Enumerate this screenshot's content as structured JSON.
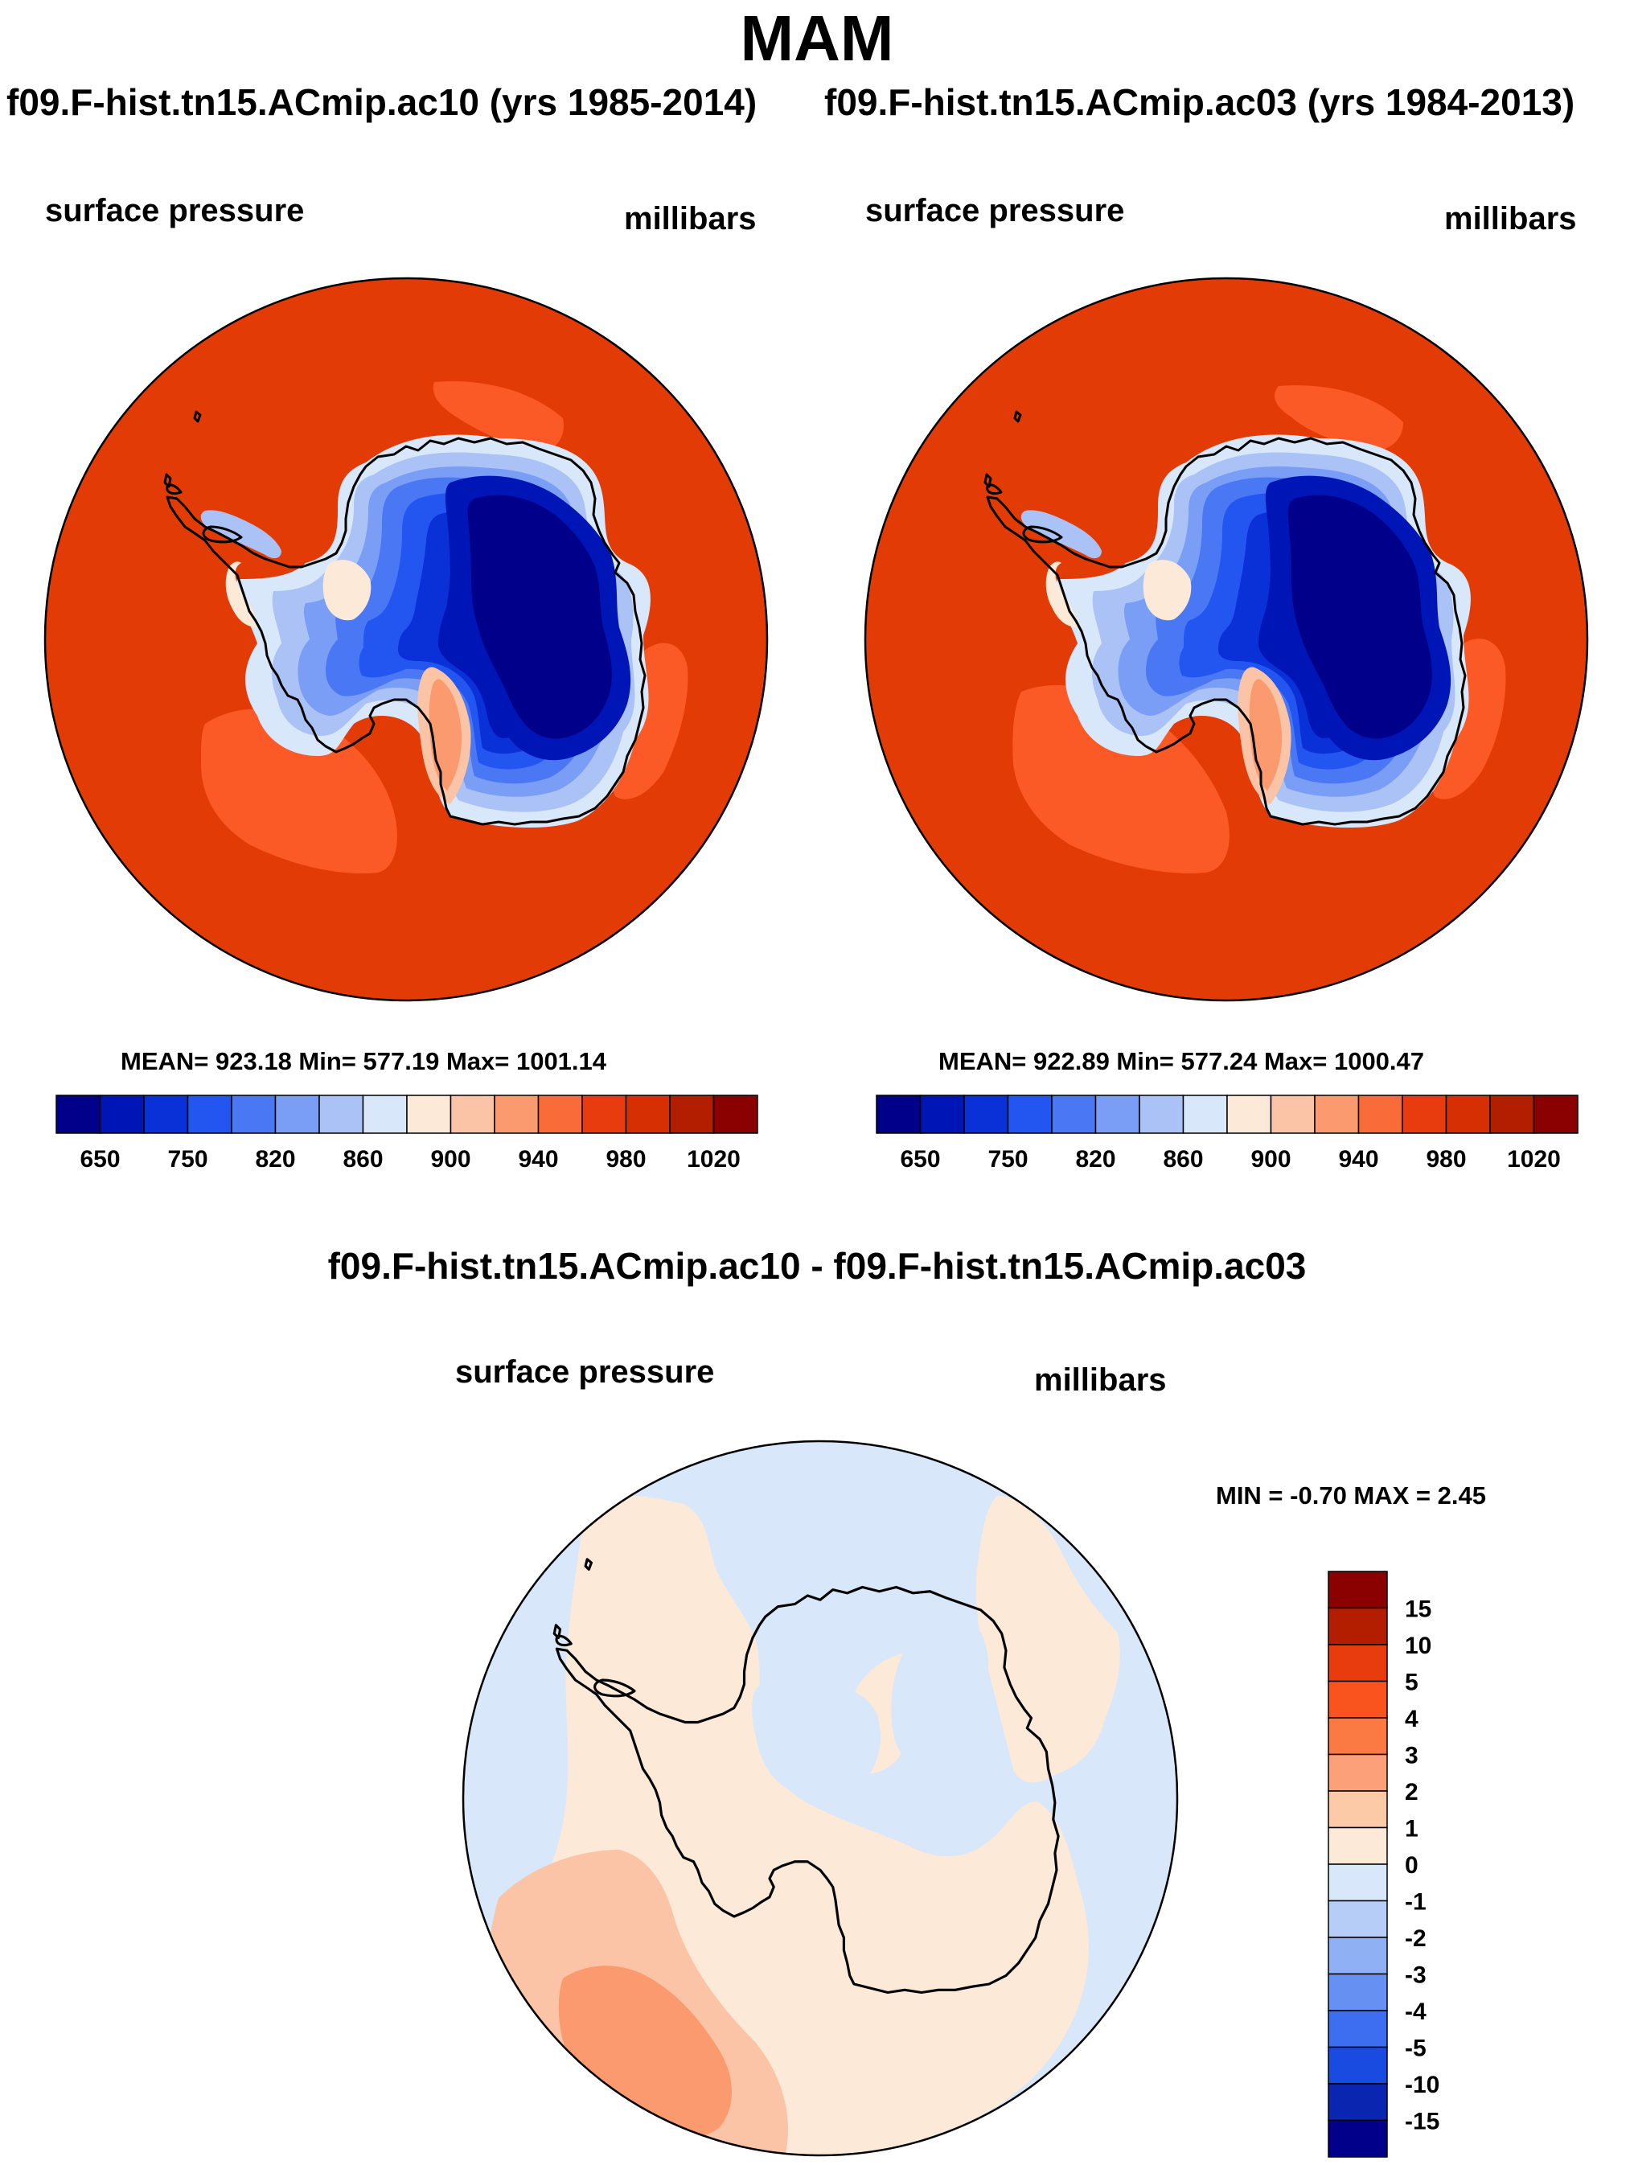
{
  "chart_data": {
    "type": "contour-map",
    "season": "MAM",
    "variable": "surface pressure",
    "units": "millibars",
    "panels": [
      {
        "id": "left",
        "case": "f09.F-hist.tn15.ACmip.ac10 (yrs 1985-2014)",
        "variable": "surface pressure",
        "units": "millibars",
        "stats_text": "MEAN= 923.18  Min= 577.19  Max= 1001.14",
        "mean": 923.18,
        "min": 577.19,
        "max": 1001.14
      },
      {
        "id": "right",
        "case": "f09.F-hist.tn15.ACmip.ac03 (yrs 1984-2013)",
        "variable": "surface pressure",
        "units": "millibars",
        "stats_text": "MEAN= 922.89  Min= 577.24  Max= 1000.47",
        "mean": 922.89,
        "min": 577.24,
        "max": 1000.47
      }
    ],
    "colorbar": {
      "levels": [
        650,
        700,
        750,
        800,
        820,
        840,
        860,
        880,
        900,
        920,
        940,
        960,
        980,
        1000,
        1020
      ],
      "tick_labels": [
        "650",
        "750",
        "820",
        "860",
        "900",
        "940",
        "980",
        "1020"
      ],
      "colors": [
        "#00008a",
        "#0015b5",
        "#0a30d8",
        "#2355f0",
        "#4a78f5",
        "#7a9ef5",
        "#aac2f5",
        "#d8e8fa",
        "#fde9d8",
        "#fcc4a6",
        "#fb9a6e",
        "#f96c3a",
        "#e83c0e",
        "#d52f03",
        "#b41e00",
        "#8b0000"
      ]
    },
    "difference": {
      "title": "f09.F-hist.tn15.ACmip.ac10 - f09.F-hist.tn15.ACmip.ac03",
      "variable": "surface pressure",
      "units": "millibars",
      "stats_text": "MIN =  -0.70 MAX =   2.45",
      "min": -0.7,
      "max": 2.45,
      "levels": [
        -15,
        -10,
        -5,
        -4,
        -3,
        -2,
        -1,
        0,
        1,
        2,
        3,
        4,
        5,
        10,
        15
      ],
      "tick_labels": [
        "15",
        "10",
        "5",
        "4",
        "3",
        "2",
        "1",
        "0",
        "-1",
        "-2",
        "-3",
        "-4",
        "-5",
        "-10",
        "-15"
      ],
      "colors_top_to_bottom": [
        "#8b0000",
        "#b41e00",
        "#e83c0e",
        "#f9541e",
        "#fb7a44",
        "#fca07a",
        "#fdcaa8",
        "#fde9d8",
        "#d8e8fa",
        "#b6cdf7",
        "#8fb0f5",
        "#6690f2",
        "#3d6ef0",
        "#1a4be0",
        "#0a25b0",
        "#00008a"
      ]
    }
  }
}
